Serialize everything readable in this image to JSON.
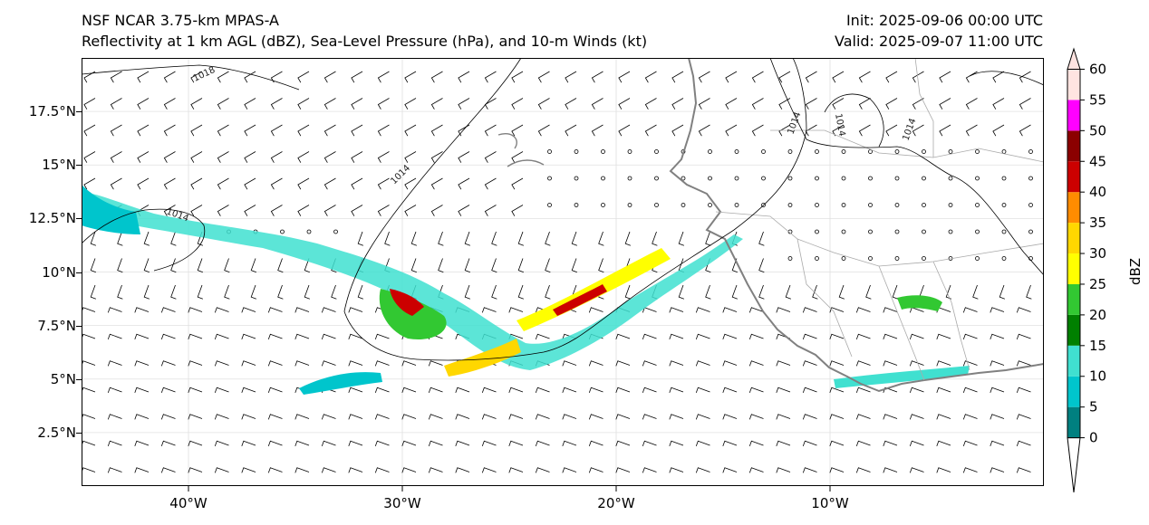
{
  "title": {
    "model": "NSF NCAR 3.75-km MPAS-A",
    "fields": "Reflectivity at 1 km AGL (dBZ), Sea-Level Pressure (hPa), and 10-m Winds (kt)",
    "init": "Init: 2025-09-06 00:00 UTC",
    "valid": "Valid: 2025-09-07 11:00 UTC"
  },
  "map": {
    "lon_range": [
      -45,
      0
    ],
    "lat_range": [
      0,
      20
    ],
    "lon_ticks": [
      {
        "value": -40,
        "label": "40°W"
      },
      {
        "value": -30,
        "label": "30°W"
      },
      {
        "value": -20,
        "label": "20°W"
      },
      {
        "value": -10,
        "label": "10°W"
      }
    ],
    "lat_ticks": [
      {
        "value": 2.5,
        "label": "2.5°N"
      },
      {
        "value": 5,
        "label": "5°N"
      },
      {
        "value": 7.5,
        "label": "7.5°N"
      },
      {
        "value": 10,
        "label": "10°N"
      },
      {
        "value": 12.5,
        "label": "12.5°N"
      },
      {
        "value": 15,
        "label": "15°N"
      },
      {
        "value": 17.5,
        "label": "17.5°N"
      }
    ],
    "isobar_labels": [
      "1018",
      "1014",
      "1014",
      "1014",
      "1014",
      "1014"
    ]
  },
  "colorbar": {
    "label": "dBZ",
    "levels": [
      0,
      5,
      10,
      15,
      20,
      25,
      30,
      35,
      40,
      45,
      50,
      55,
      60
    ],
    "tick_labels": [
      "0",
      "5",
      "10",
      "15",
      "20",
      "25",
      "30",
      "35",
      "40",
      "45",
      "50",
      "55",
      "60"
    ],
    "colors": [
      "#008080",
      "#00c5cc",
      "#40e0d0",
      "#008000",
      "#32c832",
      "#ffff00",
      "#ffd700",
      "#ff8c00",
      "#cc0000",
      "#8b0000",
      "#ff00ff",
      "#ffe4e1"
    ]
  }
}
